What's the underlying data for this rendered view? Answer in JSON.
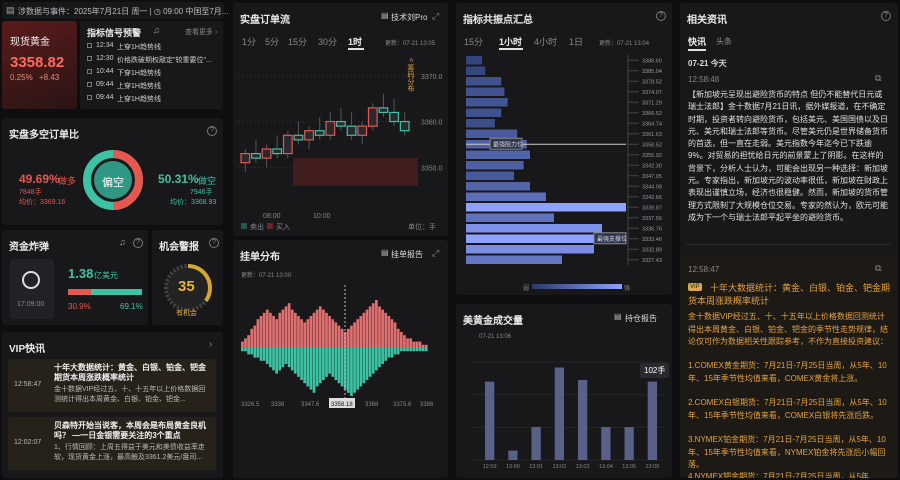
{
  "topbar": {
    "events": "涉数据与事件：2025年7月21日 周一 | ◷ 09:00 中国至7月..."
  },
  "spot": {
    "title": "现货黄金",
    "price": "3358.82",
    "change_pct": "0.25%",
    "change_abs": "+8.43"
  },
  "signals": {
    "title": "指标信号预警",
    "more": "查看更多 ›",
    "items": [
      {
        "time": "12:34",
        "text": "上穿1H趋势线"
      },
      {
        "time": "12:30",
        "text": "价格跌破期权敲定\"较重要位\"..."
      },
      {
        "time": "10:44",
        "text": "下穿1H趋势线"
      },
      {
        "time": "09:44",
        "text": "上穿1H趋势线"
      },
      {
        "time": "09:44",
        "text": "上穿1H趋势线"
      }
    ]
  },
  "longshort": {
    "title": "实盘多空订单比",
    "long_pct": "49.69%",
    "long_label": "做多",
    "long_count": "7848手",
    "long_avg": "均价：3369.16",
    "center": "偏空",
    "short_pct": "50.31%",
    "short_label": "做空",
    "short_count": "7946手",
    "short_avg": "均价：3368.93",
    "long_share": 0.4969
  },
  "flow": {
    "title": "资金炸弹",
    "time": "17:09:00",
    "value": "1.38",
    "unit": "亿美元",
    "red_pct": "30.9%",
    "green_pct": "69.1%",
    "red_share": 0.309
  },
  "alert": {
    "title": "机会警报",
    "score": "35",
    "label": "有机会",
    "score_share": 0.35
  },
  "vip": {
    "title": "VIP快讯",
    "items": [
      {
        "time": "12:58:47",
        "title": "十年大数据统计：黄金、白银、铂金、钯金期货本周涨跌概率统计",
        "body": "金十数据VIP经过五、十、十五年以上价格数据回测统计得出本周黄金、白银、铂金、钯金..."
      },
      {
        "time": "12:02:07",
        "title": "贝森特开始当说客，本周会是布局黄金良机吗？ —一日金银需要关注的3个重点",
        "body": "1、行情回顾：上周五得益于美元和美债收益率走软，现货黄金上涨，最高触及3361.2美元/盎司..."
      }
    ]
  },
  "orderflow": {
    "title": "实盘订单流",
    "tech": "技术刘Pro",
    "tabs": [
      "1分",
      "5分",
      "15分",
      "30分",
      "1时"
    ],
    "updated": "更新：07-21 13:05",
    "side_label": "< 筹码分布",
    "yticks": [
      "3370.0",
      "3360.0",
      "3350.0"
    ],
    "xticks": [
      "08:00",
      "10:00"
    ],
    "legend_sell": "卖出",
    "legend_buy": "买入",
    "unit": "单位：手",
    "candles": [
      {
        "o": 3351,
        "h": 3354,
        "l": 3349,
        "c": 3353
      },
      {
        "o": 3353,
        "h": 3356,
        "l": 3351,
        "c": 3352
      },
      {
        "o": 3352,
        "h": 3355,
        "l": 3350,
        "c": 3354
      },
      {
        "o": 3354,
        "h": 3357,
        "l": 3352,
        "c": 3353
      },
      {
        "o": 3353,
        "h": 3358,
        "l": 3352,
        "c": 3357
      },
      {
        "o": 3357,
        "h": 3360,
        "l": 3355,
        "c": 3356
      },
      {
        "o": 3356,
        "h": 3359,
        "l": 3354,
        "c": 3358
      },
      {
        "o": 3358,
        "h": 3361,
        "l": 3356,
        "c": 3357
      },
      {
        "o": 3357,
        "h": 3362,
        "l": 3356,
        "c": 3360
      },
      {
        "o": 3360,
        "h": 3363,
        "l": 3358,
        "c": 3359
      },
      {
        "o": 3359,
        "h": 3362,
        "l": 3356,
        "c": 3357
      },
      {
        "o": 3357,
        "h": 3360,
        "l": 3355,
        "c": 3359
      },
      {
        "o": 3359,
        "h": 3364,
        "l": 3358,
        "c": 3363
      },
      {
        "o": 3363,
        "h": 3366,
        "l": 3361,
        "c": 3362
      },
      {
        "o": 3362,
        "h": 3365,
        "l": 3359,
        "c": 3360
      },
      {
        "o": 3360,
        "h": 3362,
        "l": 3357,
        "c": 3358
      }
    ]
  },
  "chips": {
    "title": "挂单分布",
    "report": "挂单报告",
    "updated": "更新：07-21 13:00",
    "xticks": [
      "3326.5",
      "3338",
      "3347.6",
      "3358.18",
      "3368",
      "3375.6",
      "3386"
    ],
    "current": "3358.18",
    "up": [
      2,
      3,
      4,
      6,
      7,
      9,
      10,
      11,
      12,
      11,
      10,
      9,
      11,
      12,
      13,
      14,
      12,
      11,
      10,
      9,
      8,
      9,
      10,
      11,
      12,
      13,
      12,
      11,
      10,
      9,
      8,
      7,
      6,
      5,
      6,
      7,
      8,
      9,
      10,
      11,
      12,
      13,
      14,
      15,
      13,
      12,
      11,
      10,
      9,
      8,
      6,
      5,
      4,
      3,
      3,
      2,
      2,
      2,
      1,
      1
    ],
    "down": [
      1,
      1,
      2,
      2,
      3,
      3,
      4,
      4,
      5,
      6,
      7,
      8,
      7,
      6,
      5,
      6,
      7,
      8,
      9,
      10,
      11,
      12,
      13,
      14,
      12,
      11,
      10,
      9,
      8,
      9,
      10,
      11,
      12,
      13,
      14,
      15,
      14,
      13,
      12,
      11,
      10,
      9,
      8,
      7,
      6,
      5,
      4,
      3,
      3,
      2,
      2,
      1,
      1,
      1,
      1,
      1,
      1,
      1,
      1,
      1
    ]
  },
  "resonance": {
    "title": "指标共振点汇总",
    "tabs": [
      "15分",
      "1小时",
      "4小时",
      "1日"
    ],
    "updated": "更新：07-21 13:04",
    "levels": [
      "3386.60",
      "3385.04",
      "3378.52",
      "3374.07",
      "3371.29",
      "3366.52",
      "3364.74",
      "3361.63",
      "3358.52",
      "3355.92",
      "3342.30",
      "3347.05",
      "3344.08",
      "3342.66",
      "3339.87",
      "3337.56",
      "3336.76",
      "3333.46",
      "3332.89",
      "3327.43"
    ],
    "bars": [
      10,
      12,
      22,
      24,
      26,
      22,
      18,
      32,
      38,
      40,
      36,
      30,
      40,
      50,
      100,
      55,
      85,
      100,
      80,
      60
    ],
    "key1": "最强阻力位",
    "key2": "最强支撑位",
    "legend_weak": "弱",
    "legend_strong": "强"
  },
  "volume": {
    "title": "美黄金成交量",
    "report": "持仓报告",
    "updated": "07-21 13:06",
    "badge": "102手",
    "xticks": [
      "12:59",
      "13:00",
      "13:01",
      "13:02",
      "13:03",
      "13:04",
      "13:05",
      "13:06"
    ],
    "values": [
      100,
      12,
      42,
      118,
      102,
      42,
      42,
      100
    ]
  },
  "news": {
    "title": "相关资讯",
    "tabs": [
      "快讯",
      "头条"
    ],
    "date": "07-21 今天",
    "items": [
      {
        "time": "12:58:48",
        "text": "【新加坡元呈现出避险货币的特点 但仍不能替代日元或瑞士法郎】金十数据7月21日讯，据外媒报道，在不确定时期，投资者转向避险货币，包括美元、美国国债以及日元、美元和瑞士法郎等货币。尽管美元仍是世界储备货币的首选，但一直在走弱。美元指数今年迄今已下跌逾9%。对贸易的担忧给日元的前景蒙上了阴影。在这样的背景下，分析人士认为，可能会出现另一种选择：新加坡元。专家指出，新加坡元的波动率很低，新加坡在财政上表现出谨慎立场，经济也很稳健。然而，新加坡的货币管理方式限制了大规模仓位交易。专家的然认为，欧元可能成为下一个与瑞士法郎平起平坐的避险货币。"
      },
      {
        "time": "12:58:47",
        "badge": "VIP",
        "title": "十年大数据统计：黄金、白银、铂金、钯金期货本周涨跌概率统计",
        "intro": "金十数据VIP经过五、十、十五年以上价格数据回测统计得出本周黄金、白银、铂金、钯金的季节性走势规律，结论仅可作为数据相关性跟踪参考，不作为直接投资建议：",
        "lines": [
          "1.COMEX黄金期货：7月21日-7月25日当周，从5年、10年、15年季节性均值来看，COMEX黄金将上涨。",
          "2.COMEX白银期货：7月21日-7月25日当周，从5年、10年、15年季节性均值来看，COMEX白银将先涨后跌。",
          "3.NYMEX铂金期货：7月21日-7月25日当周，从5年、10年、15年季节性均值来看，NYMEX铂金将先涨后小幅回落。",
          "4.NYMEX钯金期货：7月21日-7月25日当周，从5年、"
        ]
      }
    ]
  }
}
